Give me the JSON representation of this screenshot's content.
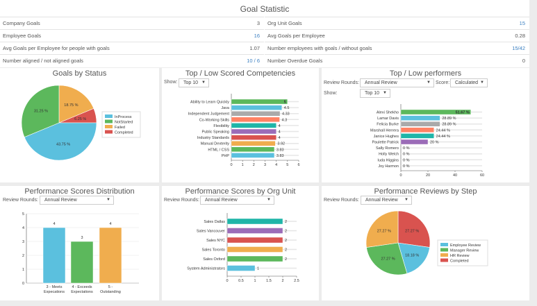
{
  "goal_statistic": {
    "title": "Goal Statistic",
    "left": [
      {
        "label": "Company Goals",
        "value": "3",
        "link": false
      },
      {
        "label": "Employee Goals",
        "value": "16",
        "link": true
      },
      {
        "label": "Avg Goals per Employee for people with goals",
        "value": "1.07",
        "link": false
      },
      {
        "label": "Number aligned / not aligned goals",
        "value": "10 / 6",
        "link": true
      }
    ],
    "right": [
      {
        "label": "Org Unit Goals",
        "value": "15",
        "link": true
      },
      {
        "label": "Avg Goals per Employee",
        "value": "0.28",
        "link": false
      },
      {
        "label": "Number employees with goals / without goals",
        "value": "15/42",
        "link": true
      },
      {
        "label": "Number Overdue Goals",
        "value": "0",
        "link": false
      }
    ]
  },
  "panels": {
    "goals_status": {
      "title": "Goals by Status"
    },
    "competencies": {
      "title": "Top / Low Scored Competencies",
      "show_label": "Show:",
      "show_value": "Top 10"
    },
    "performers": {
      "title": "Top / Low performers",
      "review_label": "Review Rounds:",
      "review_value": "Annual Review",
      "score_label": "Score:",
      "score_value": "Calculated",
      "show_label": "Show:",
      "show_value": "Top 10"
    },
    "distribution": {
      "title": "Performance Scores Distribution",
      "review_label": "Review Rounds:",
      "review_value": "Annual Review"
    },
    "orgunit": {
      "title": "Performance Scores by Org Unit",
      "review_label": "Review Rounds:",
      "review_value": "Annual Review"
    },
    "steps": {
      "title": "Performance Reviews by Step",
      "review_label": "Review Rounds:",
      "review_value": "Annual Review"
    }
  },
  "chart_data": [
    {
      "type": "pie",
      "title": "Goals by Status",
      "legend": "right",
      "slices": [
        {
          "name": "Failed",
          "value": 18.75,
          "label": "18.75 %",
          "color": "#f0ad4e"
        },
        {
          "name": "Completed",
          "value": 6.25,
          "label": "6.25 %",
          "color": "#d9534f"
        },
        {
          "name": "InProcess",
          "value": 43.75,
          "label": "43.75 %",
          "color": "#5bc0de"
        },
        {
          "name": "NotStarted",
          "value": 31.25,
          "label": "31.25 %",
          "color": "#5cb85c"
        }
      ],
      "legend_order": [
        "InProcess",
        "NotStarted",
        "Failed",
        "Completed"
      ]
    },
    {
      "type": "bar",
      "orientation": "horizontal",
      "title": "Top / Low Scored Competencies",
      "xlim": [
        0,
        6
      ],
      "xticks": [
        "0",
        "1",
        "2",
        "3",
        "4",
        "5",
        "6"
      ],
      "categories": [
        "Ability to Learn Quickly",
        "Java",
        "Independent Judgement",
        "Co-Working Skills",
        "Flexibility",
        "Public Speaking",
        "Industry Standards",
        "Manual Dexterity",
        "HTML / CSS",
        "PHP"
      ],
      "values": [
        5,
        4.5,
        4.33,
        4.3,
        4,
        4,
        4,
        3.92,
        3.83,
        3.83
      ],
      "labels": [
        "5",
        "4.5",
        "4.33",
        "4.3",
        "4",
        "4",
        "4",
        "3.92",
        "3.83",
        "3.83"
      ],
      "colors": [
        "#5cb85c",
        "#5bc0de",
        "#aaaaaa",
        "#ff8264",
        "#1fb5a8",
        "#9b6cb8",
        "#d9534f",
        "#f0ad4e",
        "#5cb85c",
        "#5bc0de"
      ]
    },
    {
      "type": "bar",
      "orientation": "horizontal",
      "title": "Top / Low performers",
      "xlim": [
        0,
        60
      ],
      "xticks": [
        "0",
        "20",
        "40",
        "60"
      ],
      "categories": [
        "Alexi Shekho",
        "Lamar Davis",
        "Felicia Burke",
        "Marshall Herrera",
        "Janice Hughes",
        "Paulette Patrick",
        "Sally Romero",
        "Holly Welch",
        "Iuda Higgins",
        "Joy Harmon"
      ],
      "values": [
        51.67,
        28.89,
        28.89,
        24.44,
        24.44,
        20,
        0,
        0,
        0,
        0
      ],
      "labels": [
        "51.67 %",
        "28.89 %",
        "28.89 %",
        "24.44 %",
        "24.44 %",
        "20 %",
        "0 %",
        "0 %",
        "0 %",
        "0 %"
      ],
      "colors": [
        "#5cb85c",
        "#5bc0de",
        "#aaaaaa",
        "#ff8264",
        "#1fb5a8",
        "#9b6cb8",
        "#d9534f",
        "#f0ad4e",
        "#5cb85c",
        "#5bc0de"
      ]
    },
    {
      "type": "bar",
      "orientation": "vertical",
      "title": "Performance Scores Distribution",
      "ylim": [
        0,
        5
      ],
      "yticks": [
        "0",
        "1",
        "2",
        "3",
        "4",
        "5"
      ],
      "categories": [
        [
          "3 - Meets",
          "Expecations"
        ],
        [
          "4 - Exceeds",
          "Expectations"
        ],
        [
          "5 -",
          "Outstanding"
        ]
      ],
      "values": [
        4,
        3,
        4
      ],
      "labels": [
        "4",
        "3",
        "4"
      ],
      "colors": [
        "#5bc0de",
        "#5cb85c",
        "#f0ad4e"
      ]
    },
    {
      "type": "bar",
      "orientation": "horizontal",
      "title": "Performance Scores by Org Unit",
      "xlim": [
        0,
        2.5
      ],
      "xticks": [
        "0",
        "0.5",
        "1",
        "1.5",
        "2",
        "2.5"
      ],
      "categories": [
        "Sales Dallas",
        "Sales Vancouver",
        "Sales NYC",
        "Sales Toronto",
        "Sales Oxford",
        "System Administrators"
      ],
      "values": [
        2,
        2,
        2,
        2,
        2,
        1
      ],
      "labels": [
        "2",
        "2",
        "2",
        "2",
        "2",
        "1"
      ],
      "colors": [
        "#1fb5a8",
        "#9b6cb8",
        "#d9534f",
        "#f0ad4e",
        "#5cb85c",
        "#5bc0de"
      ]
    },
    {
      "type": "pie",
      "title": "Performance Reviews by Step",
      "legend": "right",
      "slices": [
        {
          "name": "Completed",
          "value": 27.27,
          "label": "27.27 %",
          "color": "#d9534f"
        },
        {
          "name": "Employee Review",
          "value": 18.18,
          "label": "18.18 %",
          "color": "#5bc0de"
        },
        {
          "name": "Manager Review",
          "value": 27.27,
          "label": "27.27 %",
          "color": "#5cb85c"
        },
        {
          "name": "HR Review",
          "value": 27.27,
          "label": "27.27 %",
          "color": "#f0ad4e"
        }
      ],
      "legend_order": [
        "Employee Review",
        "Manager Review",
        "HR Review",
        "Completed"
      ]
    }
  ]
}
